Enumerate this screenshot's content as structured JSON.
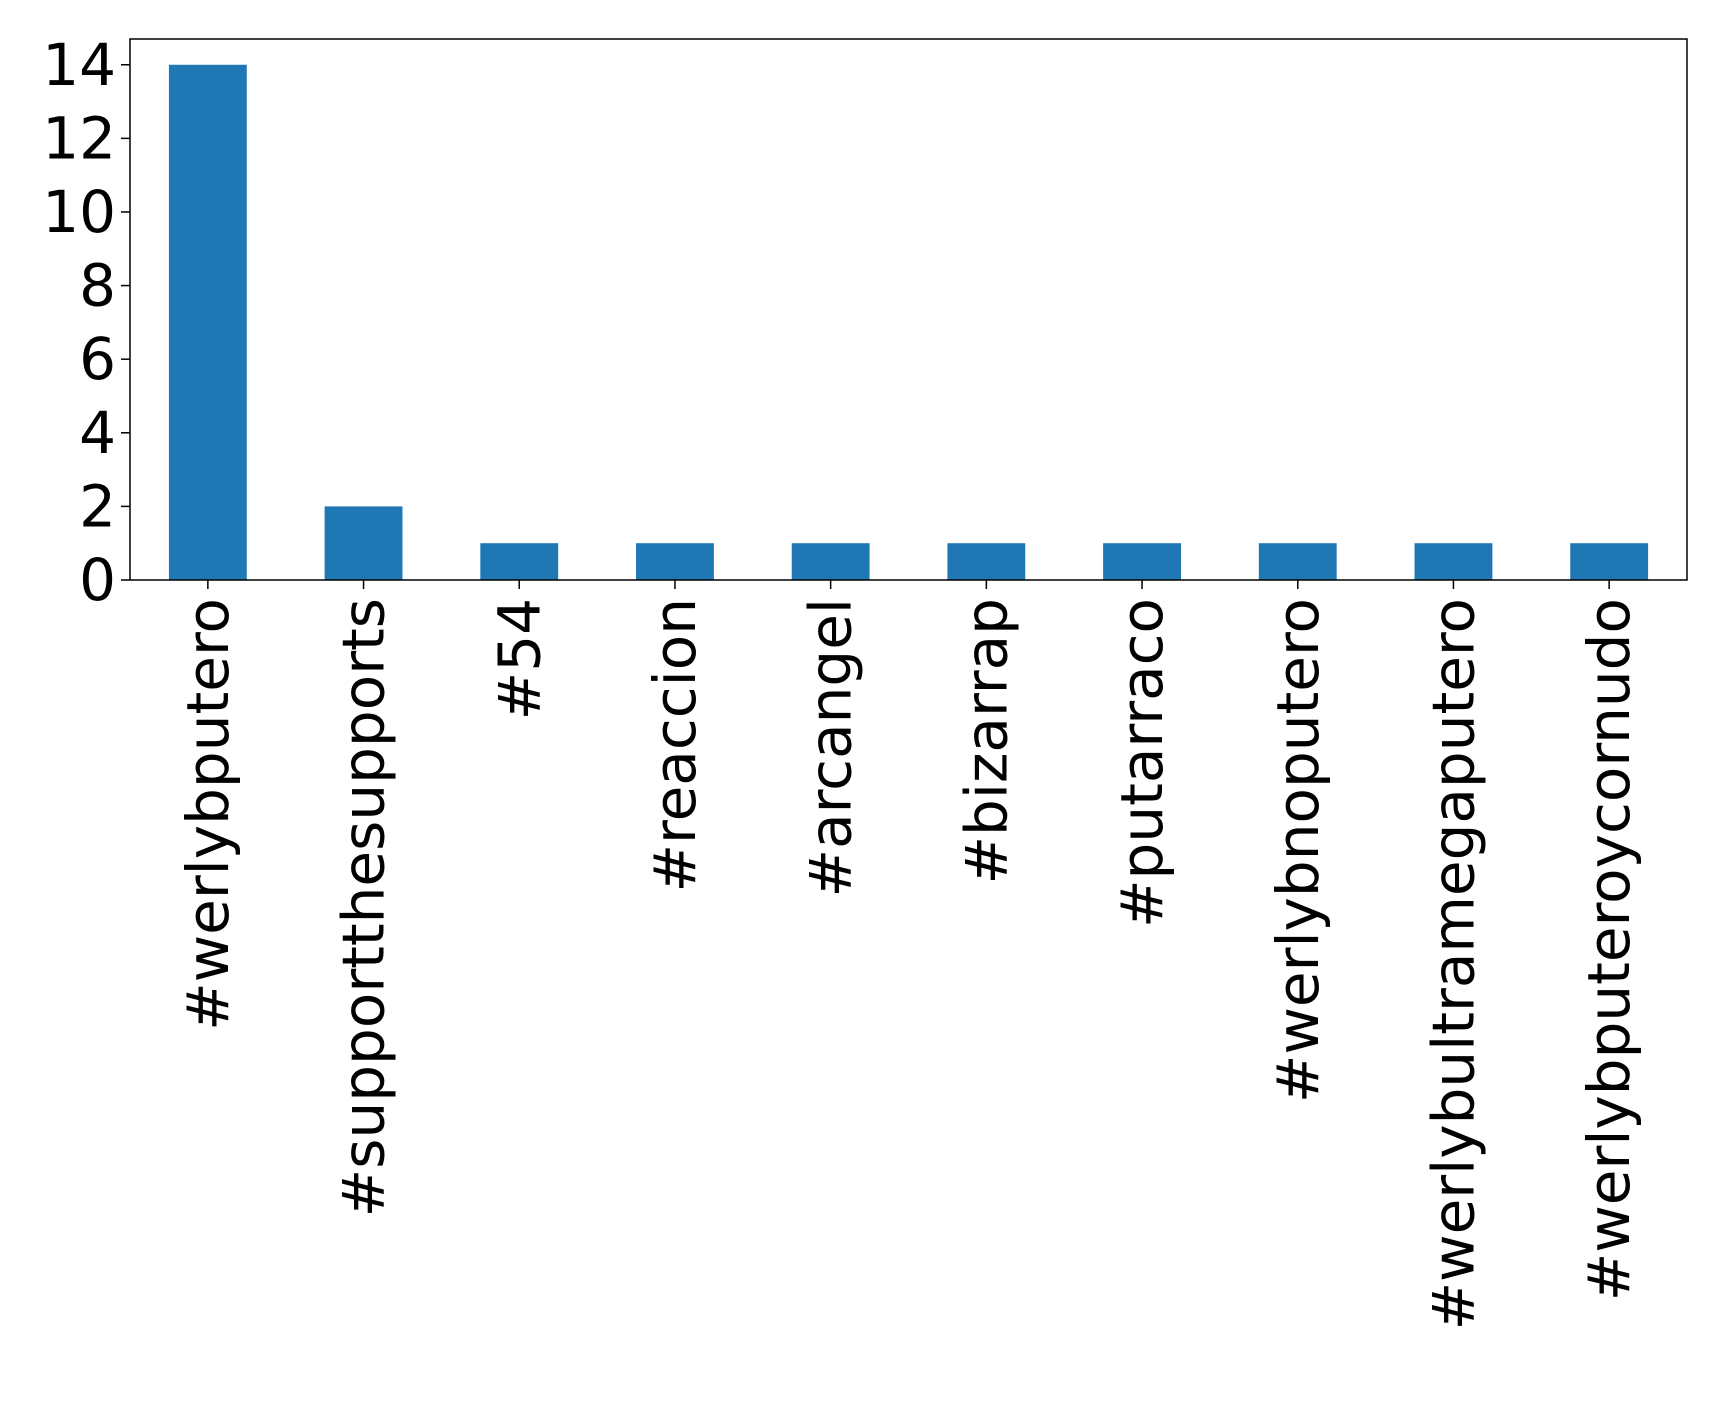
{
  "chart_data": {
    "type": "bar",
    "title": "",
    "xlabel": "",
    "ylabel": "",
    "categories": [
      "#werlybputero",
      "#supportthesupports",
      "#54",
      "#reaccion",
      "#arcangel",
      "#bizarrap",
      "#putarraco",
      "#werlybnoputero",
      "#werlybultramegaputero",
      "#werlybputeroycornudo"
    ],
    "values": [
      14,
      2,
      1,
      1,
      1,
      1,
      1,
      1,
      1,
      1
    ],
    "ylim": [
      0,
      14.7
    ],
    "yticks": [
      0,
      2,
      4,
      6,
      8,
      10,
      12,
      14
    ],
    "bar_color": "#1f77b4",
    "grid": false,
    "legend": "none"
  }
}
